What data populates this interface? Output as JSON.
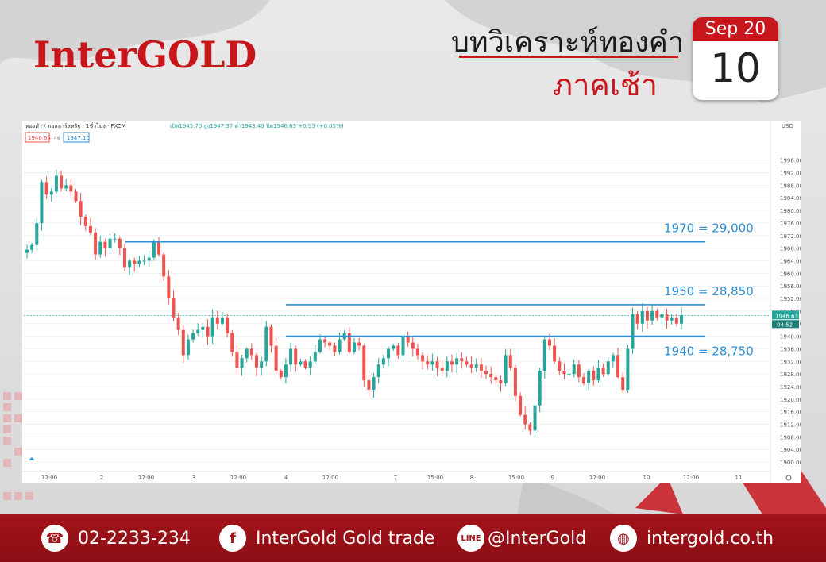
{
  "brand": {
    "logo": "InterGOLD",
    "accent": "#c8161d"
  },
  "header": {
    "title": "บทวิเคราะห์ทองคำ",
    "subtitle": "ภาคเช้า"
  },
  "calendar": {
    "month_year": "Sep 20",
    "day": "10"
  },
  "chart_toolbar": {
    "symbol": "ทองคำ / ดอลลาร์สหรัฐ · 1ชั่วโมง · FXCM",
    "ohlc": "เปิด1945.70 สูง1947.37 ต่ำ1943.49 ปิด1946.63 +0.93 (+0.05%)",
    "bid": "1946.64",
    "spread": "46",
    "ask": "1947.10",
    "currency": "USD"
  },
  "chart_data": {
    "type": "candlestick",
    "y_axis": {
      "min": 1900,
      "max": 2000,
      "step": 4,
      "ticks": [
        "1900.00",
        "1904.00",
        "1908.00",
        "1912.00",
        "1916.00",
        "1920.00",
        "1924.00",
        "1928.00",
        "1932.00",
        "1936.00",
        "1940.00",
        "1944.00",
        "1948.00",
        "1952.00",
        "1956.00",
        "1960.00",
        "1964.00",
        "1968.00",
        "1972.00",
        "1976.00",
        "1980.00",
        "1984.00",
        "1988.00",
        "1992.00",
        "1996.00"
      ]
    },
    "x_ticks": [
      "12:00",
      "2",
      "12:00",
      "3",
      "12:00",
      "4",
      "12:00",
      "7",
      "15:00",
      "8",
      "15:00",
      "9",
      "12:00",
      "10",
      "12:00",
      "11"
    ],
    "last_price": "1946.63",
    "countdown": "04:52",
    "levels": [
      {
        "price": 1970,
        "label": "1970 = 29,000"
      },
      {
        "price": 1950,
        "label": "1950 = 28,850"
      },
      {
        "price": 1940,
        "label": "1940 = 28,750"
      }
    ],
    "candles": [
      1967.5,
      1969.0,
      1976.0,
      1989.0,
      1985.0,
      1986.0,
      1991.0,
      1987.0,
      1988.0,
      1986.0,
      1983.0,
      1978.0,
      1975.0,
      1973.0,
      1966.0,
      1970.0,
      1968.0,
      1971.0,
      1971.0,
      1968.0,
      1962.0,
      1964.0,
      1963.0,
      1964.0,
      1964.0,
      1965.0,
      1970.0,
      1966.0,
      1959.0,
      1952.0,
      1946.0,
      1942.0,
      1934.0,
      1939.0,
      1941.0,
      1942.0,
      1943.0,
      1940.0,
      1946.0,
      1944.0,
      1946.0,
      1941.0,
      1935.0,
      1930.0,
      1933.0,
      1936.0,
      1934.0,
      1930.0,
      1932.0,
      1943.0,
      1937.0,
      1929.0,
      1927.0,
      1931.0,
      1936.0,
      1931.0,
      1932.0,
      1930.0,
      1932.0,
      1935.0,
      1939.0,
      1938.0,
      1937.0,
      1935.0,
      1939.0,
      1941.0,
      1935.0,
      1938.0,
      1937.0,
      1926.0,
      1923.0,
      1927.0,
      1931.0,
      1933.0,
      1936.0,
      1937.0,
      1934.0,
      1940.0,
      1938.0,
      1936.0,
      1934.0,
      1932.0,
      1931.0,
      1932.0,
      1930.0,
      1929.0,
      1932.0,
      1931.0,
      1933.0,
      1932.0,
      1931.0,
      1930.0,
      1931.0,
      1929.0,
      1928.0,
      1927.0,
      1926.0,
      1925.0,
      1934.0,
      1930.0,
      1921.0,
      1915.0,
      1912.0,
      1910.0,
      1918.0,
      1929.0,
      1939.0,
      1937.0,
      1932.0,
      1929.0,
      1928.0,
      1928.0,
      1931.0,
      1927.0,
      1925.0,
      1929.0,
      1926.0,
      1930.0,
      1928.0,
      1932.0,
      1934.0,
      1927.0,
      1923.0,
      1936.0,
      1947.0,
      1944.0,
      1948.0,
      1945.0,
      1948.0,
      1946.0,
      1947.0,
      1945.0,
      1946.0,
      1944.0,
      1946.63
    ]
  },
  "footer": {
    "phone": "02-2233-234",
    "facebook": "InterGold Gold trade",
    "line": "@InterGold",
    "web": "intergold.co.th",
    "icons": [
      "phone-icon",
      "facebook-icon",
      "line-icon",
      "globe-icon"
    ]
  }
}
